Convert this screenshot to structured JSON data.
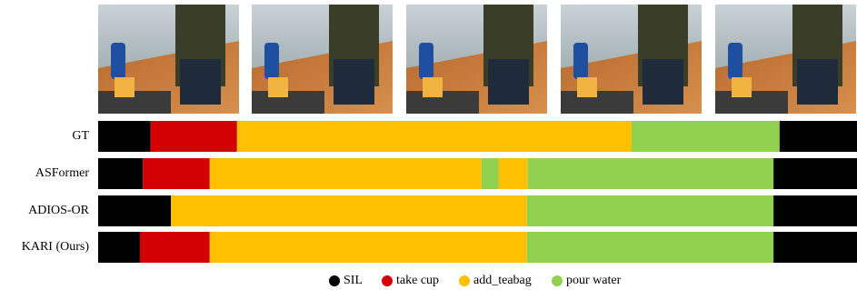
{
  "classes": [
    {
      "name": "SIL",
      "color": "#000000"
    },
    {
      "name": "take cup",
      "color": "#d20000"
    },
    {
      "name": "add_teabag",
      "color": "#ffc000"
    },
    {
      "name": "pour water",
      "color": "#92d050"
    }
  ],
  "rows": [
    {
      "label": "GT",
      "segments": [
        {
          "action": 0,
          "start": 0,
          "end": 0.069
        },
        {
          "action": 1,
          "start": 0.069,
          "end": 0.183
        },
        {
          "action": 2,
          "start": 0.183,
          "end": 0.703
        },
        {
          "action": 3,
          "start": 0.703,
          "end": 0.898
        },
        {
          "action": 0,
          "start": 0.898,
          "end": 1
        }
      ]
    },
    {
      "label": "ASFormer",
      "segments": [
        {
          "action": 0,
          "start": 0,
          "end": 0.059
        },
        {
          "action": 1,
          "start": 0.059,
          "end": 0.147
        },
        {
          "action": 2,
          "start": 0.147,
          "end": 0.505
        },
        {
          "action": 3,
          "start": 0.505,
          "end": 0.528
        },
        {
          "action": 2,
          "start": 0.528,
          "end": 0.566
        },
        {
          "action": 3,
          "start": 0.566,
          "end": 0.89
        },
        {
          "action": 0,
          "start": 0.89,
          "end": 1
        }
      ]
    },
    {
      "label": "ADIOS-OR",
      "segments": [
        {
          "action": 0,
          "start": 0,
          "end": 0.096
        },
        {
          "action": 2,
          "start": 0.096,
          "end": 0.565
        },
        {
          "action": 3,
          "start": 0.565,
          "end": 0.89
        },
        {
          "action": 0,
          "start": 0.89,
          "end": 1
        }
      ]
    },
    {
      "label": "KARI (Ours)",
      "segments": [
        {
          "action": 0,
          "start": 0,
          "end": 0.055
        },
        {
          "action": 1,
          "start": 0.055,
          "end": 0.147
        },
        {
          "action": 2,
          "start": 0.147,
          "end": 0.565
        },
        {
          "action": 3,
          "start": 0.565,
          "end": 0.89
        },
        {
          "action": 0,
          "start": 0.89,
          "end": 1
        }
      ]
    }
  ]
}
